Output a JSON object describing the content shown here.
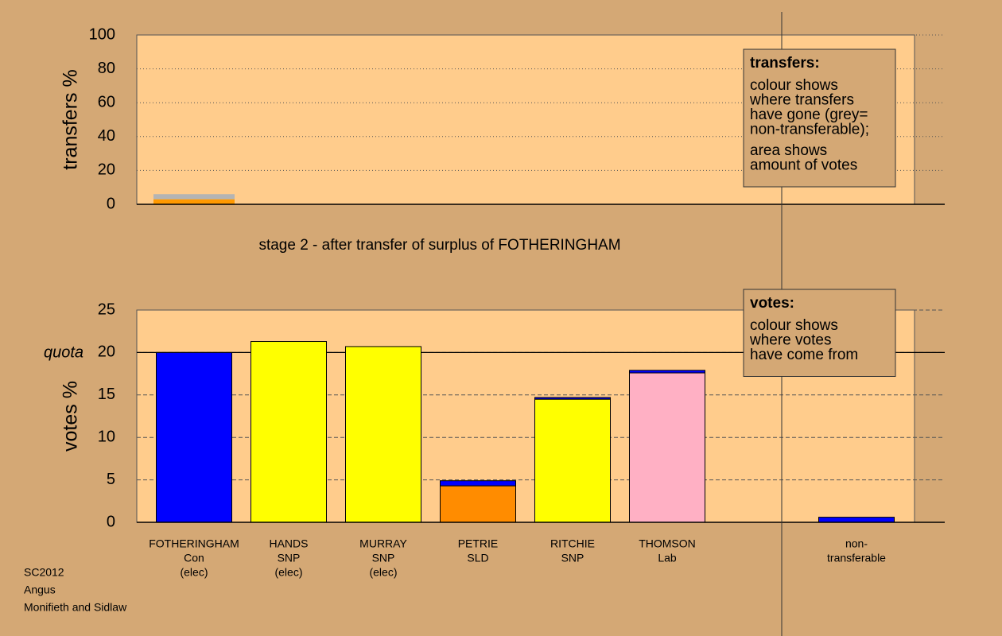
{
  "chart_data": [
    {
      "type": "bar",
      "stacked": true,
      "y_label": "transfers %",
      "ylim": [
        0,
        100
      ],
      "yticks": [
        0,
        20,
        40,
        60,
        80,
        100
      ],
      "grid": true,
      "bar_outline": false,
      "series": [
        {
          "color": "#ff9900",
          "values": [
            3,
            null,
            null,
            null,
            null,
            null,
            null,
            null
          ]
        },
        {
          "color": "#b4b4b4",
          "values": [
            3,
            null,
            null,
            null,
            null,
            null,
            null,
            null
          ]
        }
      ],
      "annotation": {
        "title": "transfers:",
        "paragraphs": [
          [
            "colour shows",
            "where transfers",
            "have gone (grey=",
            "non-transferable);"
          ],
          [
            "area shows",
            "amount of votes"
          ]
        ]
      }
    },
    {
      "type": "bar",
      "stacked": true,
      "title": "stage 2 - after transfer of surplus of FOTHERINGHAM",
      "y_label": "votes %",
      "ylim": [
        0,
        25
      ],
      "yticks": [
        0,
        5,
        10,
        15,
        20,
        25
      ],
      "grid": true,
      "bar_outline": true,
      "categories": [
        [
          "FOTHERINGHAM",
          "Con",
          "(elec)"
        ],
        [
          "HANDS",
          "SNP",
          "(elec)"
        ],
        [
          "MURRAY",
          "SNP",
          "(elec)"
        ],
        [
          "PETRIE",
          "SLD"
        ],
        [
          "RITCHIE",
          "SNP"
        ],
        [
          "THOMSON",
          "Lab"
        ],
        null,
        [
          "non-",
          "transferable"
        ]
      ],
      "series": [
        {
          "color": "#ffff00",
          "values": [
            null,
            21.3,
            20.7,
            null,
            14.5,
            null,
            null,
            null
          ]
        },
        {
          "color": "#ff8c00",
          "values": [
            null,
            null,
            null,
            4.3,
            null,
            null,
            null,
            null
          ]
        },
        {
          "color": "#ffb0c4",
          "values": [
            null,
            null,
            null,
            null,
            null,
            17.6,
            null,
            null
          ]
        },
        {
          "color": "#0000ff",
          "values": [
            20.0,
            null,
            null,
            0.6,
            0.2,
            0.3,
            null,
            0.6
          ]
        }
      ],
      "hlines": [
        {
          "value": 20,
          "label": "quota"
        }
      ],
      "annotation": {
        "title": "votes:",
        "paragraphs": [
          [
            "colour shows",
            "where votes",
            "have come from"
          ]
        ]
      }
    }
  ],
  "footer": [
    "SC2012",
    "Angus",
    "Monifieth and Sidlaw"
  ]
}
